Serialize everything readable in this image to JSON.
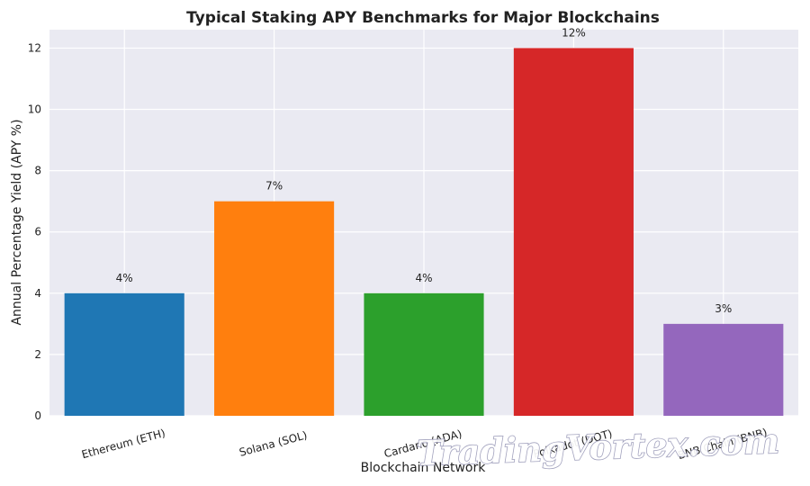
{
  "chart_data": {
    "type": "bar",
    "title": "Typical Staking APY Benchmarks for Major Blockchains",
    "xlabel": "Blockchain Network",
    "ylabel": "Annual Percentage Yield (APY %)",
    "categories": [
      "Ethereum (ETH)",
      "Solana (SOL)",
      "Cardano (ADA)",
      "Polkadot (DOT)",
      "BNB Chain (BNB)"
    ],
    "values": [
      4,
      7,
      4,
      12,
      3
    ],
    "data_labels": [
      "4%",
      "7%",
      "4%",
      "12%",
      "3%"
    ],
    "colors": [
      "#1f77b4",
      "#ff7f0e",
      "#2ca02c",
      "#d62728",
      "#9467bd"
    ],
    "ylim": [
      0,
      12.6
    ],
    "yticks": [
      0,
      2,
      4,
      6,
      8,
      10,
      12
    ],
    "grid": true,
    "background": "#eaeaf2"
  },
  "watermark": "TradingVortex.com"
}
